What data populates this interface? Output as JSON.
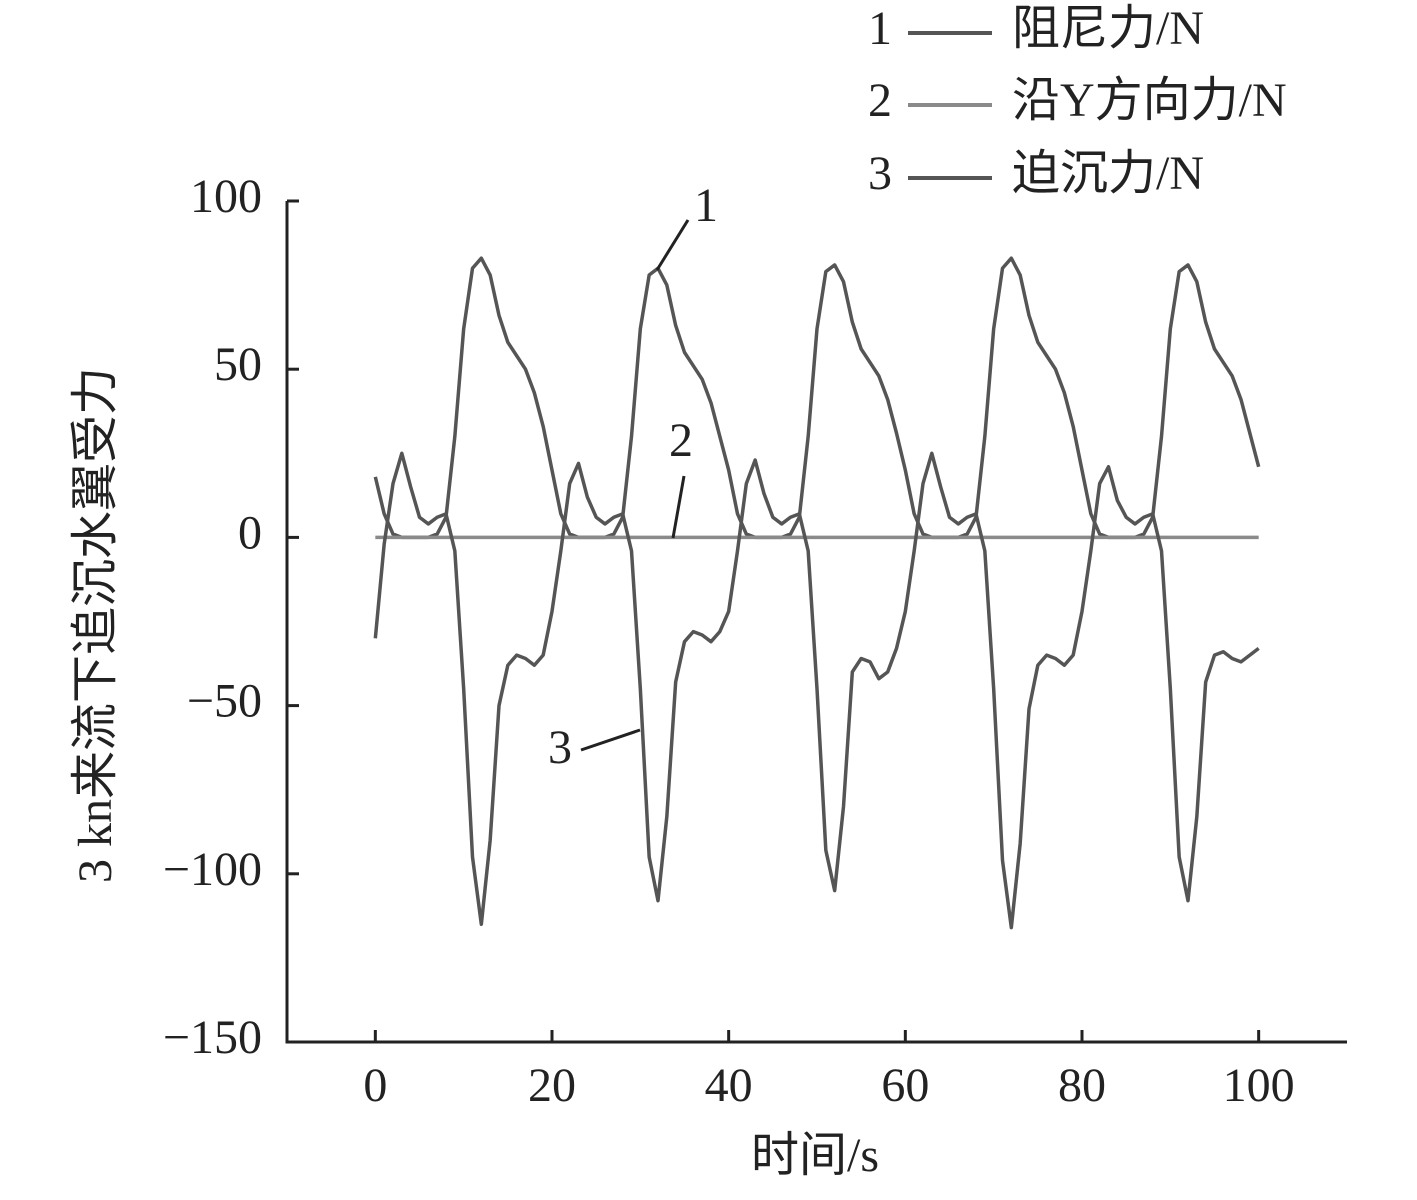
{
  "chart_data": {
    "type": "line",
    "x_label": "时间/s",
    "y_label": "3 kn来流下追沉水翼受力",
    "xlim": [
      -10,
      110
    ],
    "ylim": [
      -150,
      100
    ],
    "xticks": [
      0,
      20,
      40,
      60,
      80,
      100
    ],
    "yticks": [
      {
        "value": -150,
        "label": "−150"
      },
      {
        "value": -100,
        "label": "−100"
      },
      {
        "value": -50,
        "label": "−50"
      },
      0,
      50,
      100
    ],
    "x": [
      0,
      1,
      2,
      3,
      4,
      5,
      6,
      7,
      8,
      9,
      10,
      11,
      12,
      13,
      14,
      15,
      16,
      17,
      18,
      19,
      20,
      21,
      22,
      23,
      24,
      25,
      26,
      27,
      28,
      29,
      30,
      31,
      32,
      33,
      34,
      35,
      36,
      37,
      38,
      39,
      40,
      41,
      42,
      43,
      44,
      45,
      46,
      47,
      48,
      49,
      50,
      51,
      52,
      53,
      54,
      55,
      56,
      57,
      58,
      59,
      60,
      61,
      62,
      63,
      64,
      65,
      66,
      67,
      68,
      69,
      70,
      71,
      72,
      73,
      74,
      75,
      76,
      77,
      78,
      79,
      80,
      81,
      82,
      83,
      84,
      85,
      86,
      87,
      88,
      89,
      90,
      91,
      92,
      93,
      94,
      95,
      96,
      97,
      98,
      99,
      100
    ],
    "series": [
      {
        "key": "1",
        "name": "阻尼力/N",
        "color": "#555555",
        "values": [
          18,
          7,
          1,
          0,
          0,
          0,
          0,
          1,
          6,
          30,
          62,
          80,
          83,
          78,
          66,
          58,
          54,
          50,
          43,
          33,
          20,
          7,
          1,
          0,
          0,
          0,
          0,
          1,
          6,
          30,
          62,
          78,
          80,
          75,
          63,
          55,
          51,
          47,
          40,
          30,
          20,
          7,
          1,
          0,
          0,
          0,
          0,
          1,
          6,
          30,
          62,
          79,
          81,
          76,
          64,
          56,
          52,
          48,
          41,
          31,
          20,
          7,
          1,
          0,
          0,
          0,
          0,
          1,
          6,
          30,
          62,
          80,
          83,
          78,
          66,
          58,
          54,
          50,
          43,
          33,
          20,
          7,
          1,
          0,
          0,
          0,
          0,
          1,
          6,
          30,
          62,
          79,
          81,
          76,
          64,
          56,
          52,
          48,
          41,
          31,
          21
        ]
      },
      {
        "key": "2",
        "name": "沿Y方向力/N",
        "color": "#8a8a8a",
        "values": [
          0,
          0,
          0,
          0,
          0,
          0,
          0,
          0,
          0,
          0,
          0,
          0,
          0,
          0,
          0,
          0,
          0,
          0,
          0,
          0,
          0,
          0,
          0,
          0,
          0,
          0,
          0,
          0,
          0,
          0,
          0,
          0,
          0,
          0,
          0,
          0,
          0,
          0,
          0,
          0,
          0,
          0,
          0,
          0,
          0,
          0,
          0,
          0,
          0,
          0,
          0,
          0,
          0,
          0,
          0,
          0,
          0,
          0,
          0,
          0,
          0,
          0,
          0,
          0,
          0,
          0,
          0,
          0,
          0,
          0,
          0,
          0,
          0,
          0,
          0,
          0,
          0,
          0,
          0,
          0,
          0,
          0,
          0,
          0,
          0,
          0,
          0,
          0,
          0,
          0,
          0,
          0,
          0,
          0,
          0,
          0,
          0,
          0,
          0,
          0,
          0
        ]
      },
      {
        "key": "3",
        "name": "迫沉力/N",
        "color": "#555555",
        "values": [
          -30,
          -2,
          16,
          25,
          15,
          6,
          4,
          6,
          7,
          -4,
          -45,
          -95,
          -115,
          -90,
          -50,
          -38,
          -35,
          -36,
          -38,
          -35,
          -22,
          -4,
          16,
          22,
          12,
          6,
          4,
          6,
          7,
          -4,
          -45,
          -95,
          -108,
          -83,
          -43,
          -31,
          -28,
          -29,
          -31,
          -28,
          -22,
          -4,
          16,
          23,
          13,
          6,
          4,
          6,
          7,
          -4,
          -45,
          -93,
          -105,
          -80,
          -40,
          -36,
          -37,
          -42,
          -40,
          -33,
          -22,
          -4,
          16,
          25,
          15,
          6,
          4,
          6,
          7,
          -4,
          -45,
          -96,
          -116,
          -91,
          -51,
          -38,
          -35,
          -36,
          -38,
          -35,
          -22,
          -4,
          16,
          21,
          11,
          6,
          4,
          6,
          7,
          -4,
          -45,
          -95,
          -108,
          -83,
          -43,
          -35,
          -34,
          -36,
          -37,
          -35,
          -33
        ]
      }
    ],
    "grid": false
  }
}
